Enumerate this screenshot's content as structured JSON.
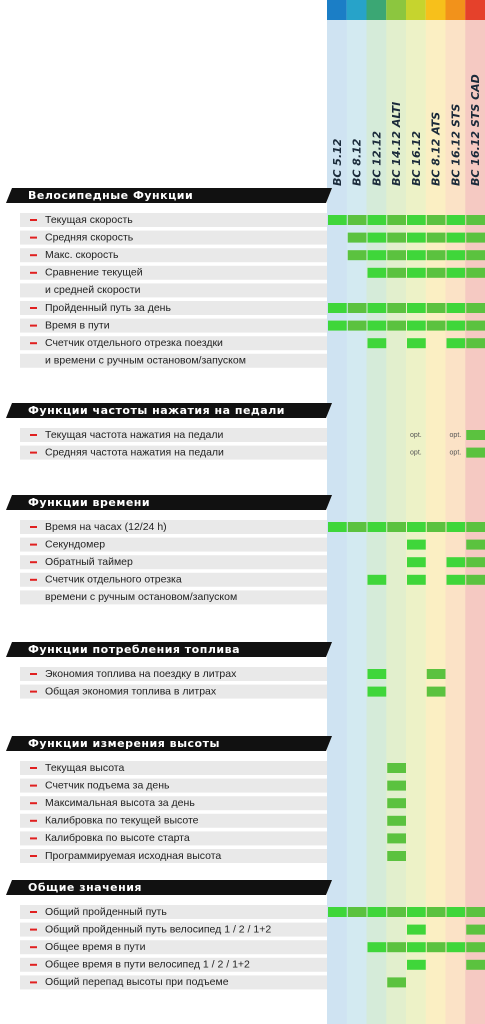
{
  "models": [
    "BC 5.12",
    "BC 8.12",
    "BC 12.12",
    "BC 14.12 ALTI",
    "BC 16.12",
    "BC 8.12 ATS",
    "BC 16.12 STS",
    "BC 16.12 STS CAD"
  ],
  "sections": [
    {
      "title": "Велосипедные Функции",
      "rows": [
        {
          "lines": [
            "Текущая скорость"
          ],
          "cells": [
            true,
            true,
            true,
            true,
            true,
            true,
            true,
            true
          ]
        },
        {
          "lines": [
            "Средняя скорость"
          ],
          "cells": [
            false,
            true,
            true,
            true,
            true,
            true,
            true,
            true
          ]
        },
        {
          "lines": [
            "Макс. скорость"
          ],
          "cells": [
            false,
            true,
            true,
            true,
            true,
            true,
            true,
            true
          ]
        },
        {
          "lines": [
            "Сравнение текущей",
            "и средней скорости"
          ],
          "cells": [
            false,
            false,
            true,
            true,
            true,
            true,
            true,
            true
          ]
        },
        {
          "lines": [
            "Пройденный путь за день"
          ],
          "cells": [
            true,
            true,
            true,
            true,
            true,
            true,
            true,
            true
          ]
        },
        {
          "lines": [
            "Время в пути"
          ],
          "cells": [
            true,
            true,
            true,
            true,
            true,
            true,
            true,
            true
          ]
        },
        {
          "lines": [
            "Счетчик отдельного отрезка поездки",
            "и времени с ручным остановом/запуском"
          ],
          "cells": [
            false,
            false,
            true,
            false,
            true,
            false,
            true,
            true
          ]
        }
      ]
    },
    {
      "title": "Функции частоты нажатия на педали",
      "rows": [
        {
          "lines": [
            "Текущая частота нажатия на педали"
          ],
          "cells": [
            false,
            false,
            false,
            false,
            "opt.",
            false,
            "opt.",
            true
          ]
        },
        {
          "lines": [
            "Средняя частота нажатия на педали"
          ],
          "cells": [
            false,
            false,
            false,
            false,
            "opt.",
            false,
            "opt.",
            true
          ]
        }
      ]
    },
    {
      "title": "Функции времени",
      "rows": [
        {
          "lines": [
            "Время на часах (12/24 h)"
          ],
          "cells": [
            true,
            true,
            true,
            true,
            true,
            true,
            true,
            true
          ]
        },
        {
          "lines": [
            "Секундомер"
          ],
          "cells": [
            false,
            false,
            false,
            false,
            true,
            false,
            false,
            true
          ]
        },
        {
          "lines": [
            "Обратный таймер"
          ],
          "cells": [
            false,
            false,
            false,
            false,
            true,
            false,
            true,
            true
          ]
        },
        {
          "lines": [
            "Счетчик отдельного отрезка",
            "времени с ручным остановом/запуском"
          ],
          "cells": [
            false,
            false,
            true,
            false,
            true,
            false,
            true,
            true
          ]
        }
      ]
    },
    {
      "title": "Функции потребления топлива",
      "rows": [
        {
          "lines": [
            "Экономия топлива на поездку в литрах"
          ],
          "cells": [
            false,
            false,
            true,
            false,
            false,
            true,
            false,
            false
          ]
        },
        {
          "lines": [
            "Общая экономия топлива в литрах"
          ],
          "cells": [
            false,
            false,
            true,
            false,
            false,
            true,
            false,
            false
          ]
        }
      ]
    },
    {
      "title": "Функции измерения высоты",
      "rows": [
        {
          "lines": [
            "Текущая высота"
          ],
          "cells": [
            false,
            false,
            false,
            true,
            false,
            false,
            false,
            false
          ]
        },
        {
          "lines": [
            "Счетчик подъема за день"
          ],
          "cells": [
            false,
            false,
            false,
            true,
            false,
            false,
            false,
            false
          ]
        },
        {
          "lines": [
            "Максимальная высота за день"
          ],
          "cells": [
            false,
            false,
            false,
            true,
            false,
            false,
            false,
            false
          ]
        },
        {
          "lines": [
            "Калибровка по текущей высоте"
          ],
          "cells": [
            false,
            false,
            false,
            true,
            false,
            false,
            false,
            false
          ]
        },
        {
          "lines": [
            "Калибровка по высоте старта"
          ],
          "cells": [
            false,
            false,
            false,
            true,
            false,
            false,
            false,
            false
          ]
        },
        {
          "lines": [
            "Программируемая исходная высота"
          ],
          "cells": [
            false,
            false,
            false,
            true,
            false,
            false,
            false,
            false
          ]
        }
      ]
    },
    {
      "title": "Общие значения",
      "rows": [
        {
          "lines": [
            "Общий пройденный путь"
          ],
          "cells": [
            true,
            true,
            true,
            true,
            true,
            true,
            true,
            true
          ]
        },
        {
          "lines": [
            "Общий пройденный путь велосипед 1 / 2 / 1+2"
          ],
          "cells": [
            false,
            false,
            false,
            false,
            true,
            false,
            false,
            true
          ]
        },
        {
          "lines": [
            "Общее время в пути"
          ],
          "cells": [
            false,
            false,
            true,
            true,
            true,
            true,
            true,
            true
          ]
        },
        {
          "lines": [
            "Общее время в пути велосипед 1 / 2 / 1+2"
          ],
          "cells": [
            false,
            false,
            false,
            false,
            true,
            false,
            false,
            true
          ]
        },
        {
          "lines": [
            "Общий перепад высоты при подъеме"
          ],
          "cells": [
            false,
            false,
            false,
            true,
            false,
            false,
            false,
            false
          ]
        }
      ]
    }
  ]
}
